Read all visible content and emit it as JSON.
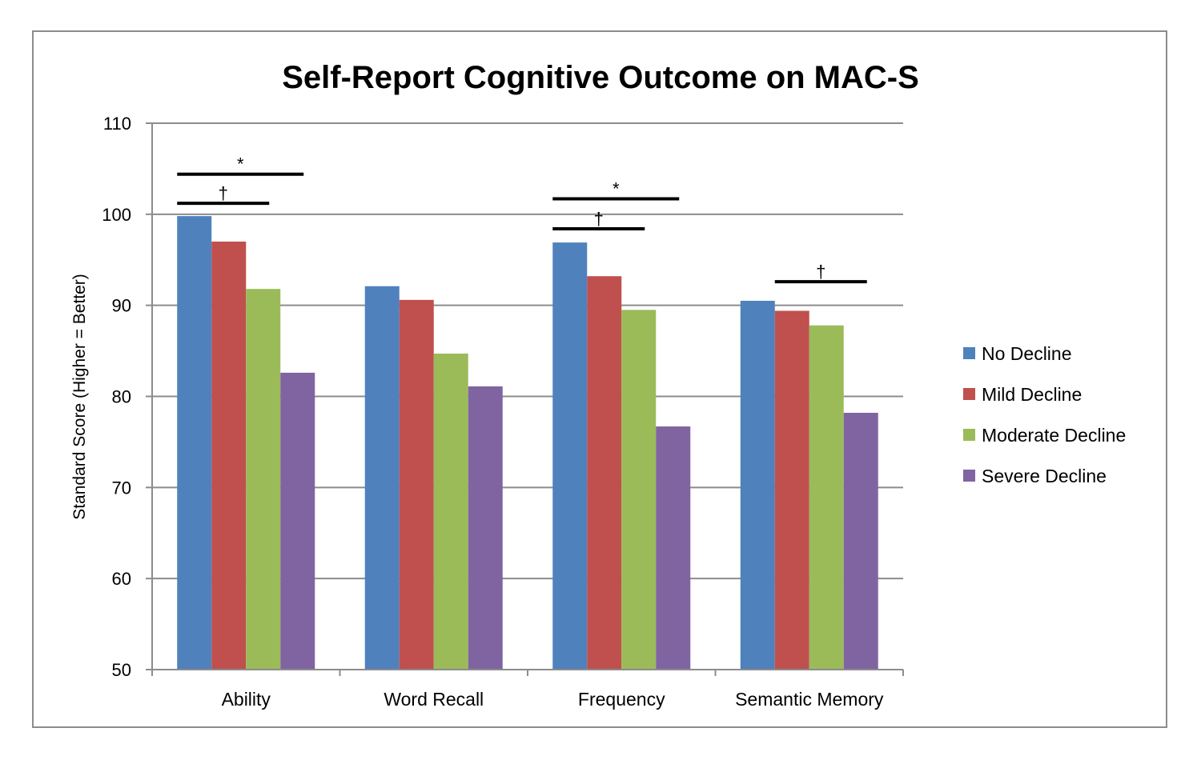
{
  "chart_data": {
    "type": "bar",
    "title": "Self-Report Cognitive Outcome on MAC-S",
    "xlabel": "",
    "ylabel": "Standard Score (Higher = Better)",
    "ylim": [
      50,
      110
    ],
    "yticks": [
      50,
      60,
      70,
      80,
      90,
      100,
      110
    ],
    "grid": true,
    "legend_position": "right",
    "categories": [
      "Ability",
      "Word Recall",
      "Frequency",
      "Semantic Memory"
    ],
    "series": [
      {
        "name": "No Decline",
        "color": "#4F81BD",
        "values": [
          99.8,
          92.1,
          96.9,
          90.5
        ]
      },
      {
        "name": "Mild Decline",
        "color": "#C0504D",
        "values": [
          97.0,
          90.6,
          93.2,
          89.4
        ]
      },
      {
        "name": "Moderate Decline",
        "color": "#9BBB59",
        "values": [
          91.8,
          84.7,
          89.5,
          87.8
        ]
      },
      {
        "name": "Severe Decline",
        "color": "#8064A2",
        "values": [
          82.6,
          81.1,
          76.7,
          78.2
        ]
      }
    ],
    "annotations": [
      {
        "category": "Ability",
        "from_series": 0,
        "to_series": 2,
        "label": "†",
        "y": 101.2
      },
      {
        "category": "Ability",
        "from_series": 0,
        "to_series": 3,
        "label": "*",
        "y": 104.4
      },
      {
        "category": "Frequency",
        "from_series": 0,
        "to_series": 2,
        "label": "†",
        "y": 98.4
      },
      {
        "category": "Frequency",
        "from_series": 0,
        "to_series": 3,
        "label": "*",
        "y": 101.7
      },
      {
        "category": "Semantic Memory",
        "from_series": 1,
        "to_series": 3,
        "label": "†",
        "y": 92.6
      }
    ]
  }
}
